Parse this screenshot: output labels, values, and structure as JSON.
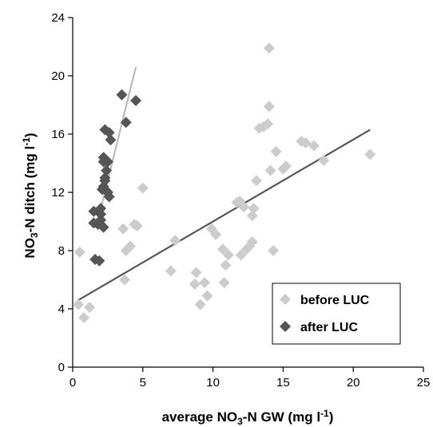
{
  "chart_data": {
    "type": "scatter",
    "xlabel": {
      "pre": "average NO",
      "sub": "3",
      "mid": "-N GW (mg l",
      "sup": "-1",
      "post": ")"
    },
    "ylabel": {
      "pre": "NO",
      "sub": "3",
      "mid": "-N ditch (mg l",
      "sup": "-1",
      "post": ")"
    },
    "xlim": [
      0,
      25
    ],
    "ylim": [
      0,
      24
    ],
    "xticks": [
      "0",
      "5",
      "10",
      "15",
      "20",
      "25"
    ],
    "yticks": [
      "0",
      "4",
      "8",
      "12",
      "16",
      "20",
      "24"
    ],
    "xtick_values": [
      0,
      5,
      10,
      15,
      20,
      25
    ],
    "ytick_values": [
      0,
      4,
      8,
      12,
      16,
      20,
      24
    ],
    "grid": false,
    "legend_position": "bottom-right",
    "series": [
      {
        "name": "before LUC",
        "color": "#cccccc",
        "marker": "diamond",
        "points": [
          [
            0.4,
            4.3
          ],
          [
            0.5,
            7.9
          ],
          [
            0.8,
            3.4
          ],
          [
            1.2,
            4.1
          ],
          [
            3.6,
            9.5
          ],
          [
            3.7,
            6.0
          ],
          [
            3.8,
            8.0
          ],
          [
            4.1,
            8.3
          ],
          [
            4.4,
            9.8
          ],
          [
            4.6,
            9.7
          ],
          [
            5.0,
            12.3
          ],
          [
            7.0,
            6.6
          ],
          [
            7.3,
            8.7
          ],
          [
            8.7,
            5.7
          ],
          [
            8.8,
            6.5
          ],
          [
            9.1,
            4.3
          ],
          [
            9.4,
            5.8
          ],
          [
            9.6,
            4.9
          ],
          [
            9.9,
            9.5
          ],
          [
            10.2,
            9.1
          ],
          [
            10.7,
            8.1
          ],
          [
            10.8,
            5.8
          ],
          [
            10.9,
            7.0
          ],
          [
            11.1,
            7.7
          ],
          [
            11.7,
            11.3
          ],
          [
            11.9,
            11.4
          ],
          [
            12.0,
            7.7
          ],
          [
            12.2,
            11.0
          ],
          [
            12.4,
            8.1
          ],
          [
            12.6,
            8.3
          ],
          [
            12.8,
            8.6
          ],
          [
            12.8,
            10.4
          ],
          [
            12.9,
            10.9
          ],
          [
            13.1,
            12.8
          ],
          [
            13.3,
            16.4
          ],
          [
            13.6,
            16.5
          ],
          [
            13.9,
            16.7
          ],
          [
            14.0,
            21.9
          ],
          [
            14.0,
            17.9
          ],
          [
            14.1,
            13.5
          ],
          [
            14.3,
            8.0
          ],
          [
            14.5,
            14.8
          ],
          [
            15.0,
            13.6
          ],
          [
            15.2,
            13.8
          ],
          [
            16.3,
            15.5
          ],
          [
            16.6,
            15.4
          ],
          [
            17.2,
            15.2
          ],
          [
            17.9,
            14.2
          ],
          [
            21.2,
            14.6
          ]
        ],
        "trendline": [
          [
            0.4,
            4.6
          ],
          [
            21.2,
            16.3
          ]
        ],
        "trend_color": "#555555"
      },
      {
        "name": "after LUC",
        "color": "#555555",
        "marker": "diamond",
        "points": [
          [
            1.5,
            9.9
          ],
          [
            1.5,
            10.7
          ],
          [
            1.6,
            7.4
          ],
          [
            1.8,
            9.8
          ],
          [
            1.9,
            7.3
          ],
          [
            2.0,
            10.5
          ],
          [
            2.0,
            10.9
          ],
          [
            2.0,
            10.1
          ],
          [
            2.2,
            9.6
          ],
          [
            2.1,
            12.2
          ],
          [
            2.2,
            12.4
          ],
          [
            2.2,
            14.1
          ],
          [
            2.2,
            14.4
          ],
          [
            2.3,
            12.8
          ],
          [
            2.3,
            13.0
          ],
          [
            2.3,
            14.3
          ],
          [
            2.3,
            16.3
          ],
          [
            2.4,
            13.5
          ],
          [
            2.4,
            12.1
          ],
          [
            2.5,
            12.0
          ],
          [
            2.5,
            14.1
          ],
          [
            2.6,
            11.7
          ],
          [
            2.6,
            16.1
          ],
          [
            2.7,
            15.6
          ],
          [
            3.5,
            18.7
          ],
          [
            3.8,
            16.8
          ],
          [
            4.5,
            18.3
          ]
        ],
        "trendline": [
          [
            1.7,
            9.7
          ],
          [
            4.5,
            20.6
          ]
        ],
        "trend_color": "#bbbbbb"
      }
    ]
  }
}
